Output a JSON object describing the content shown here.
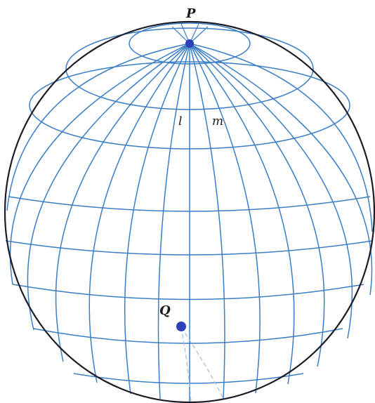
{
  "labels": {
    "north_pole": "P",
    "meridian_l": "l",
    "meridian_m": "m",
    "point_q": "Q"
  },
  "colors": {
    "outline": "#1c1c28",
    "grid": "#3a7ec6",
    "point": "#2f3fb8",
    "dashed_arc": "#a9bfd6",
    "label": "#1a1a1a"
  }
}
